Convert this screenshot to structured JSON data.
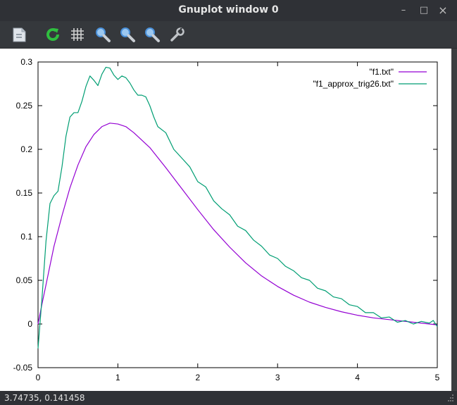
{
  "window": {
    "title": "Gnuplot window 0"
  },
  "controls": {
    "minimize": "–",
    "maximize": "□",
    "close": "×"
  },
  "toolbar": {
    "items": [
      {
        "name": "copy-to-clipboard-icon",
        "color": "#dfe4ea"
      },
      {
        "name": "replot-icon",
        "color": "#2fbf3f"
      },
      {
        "name": "grid-icon",
        "color": "#cfcfcf"
      },
      {
        "name": "zoom-previous-icon",
        "color": "#4a90d9"
      },
      {
        "name": "zoom-next-icon",
        "color": "#4a90d9"
      },
      {
        "name": "autoscale-icon",
        "color": "#4a90d9"
      },
      {
        "name": "settings-wrench-icon",
        "color": "#bfc3c7"
      }
    ]
  },
  "status": {
    "coords": "3.74735,  0.141458"
  },
  "chart_data": {
    "type": "line",
    "title": "",
    "xlabel": "",
    "ylabel": "",
    "xlim": [
      0,
      5
    ],
    "ylim": [
      -0.05,
      0.3
    ],
    "xticks": [
      0,
      1,
      2,
      3,
      4,
      5
    ],
    "xtick_labels": [
      "0",
      "1",
      "2",
      "3",
      "4",
      "5"
    ],
    "yticks": [
      -0.05,
      0,
      0.05,
      0.1,
      0.15,
      0.2,
      0.25,
      0.3
    ],
    "ytick_labels": [
      "-0.05",
      "0",
      "0.05",
      "0.1",
      "0.15",
      "0.2",
      "0.25",
      "0.3"
    ],
    "grid": false,
    "legend": "top-right",
    "series": [
      {
        "name": "\"f1.txt\"",
        "color": "#9400d3",
        "x": [
          0,
          0.05,
          0.1,
          0.2,
          0.3,
          0.4,
          0.5,
          0.6,
          0.7,
          0.8,
          0.9,
          1.0,
          1.1,
          1.2,
          1.4,
          1.6,
          1.8,
          2.0,
          2.2,
          2.4,
          2.6,
          2.8,
          3.0,
          3.2,
          3.4,
          3.6,
          3.8,
          4.0,
          4.2,
          4.4,
          4.6,
          4.8,
          5.0
        ],
        "y": [
          0,
          0.023,
          0.045,
          0.089,
          0.124,
          0.156,
          0.182,
          0.203,
          0.217,
          0.226,
          0.23,
          0.229,
          0.226,
          0.219,
          0.202,
          0.179,
          0.155,
          0.131,
          0.108,
          0.088,
          0.07,
          0.055,
          0.043,
          0.033,
          0.025,
          0.019,
          0.014,
          0.01,
          0.007,
          0.005,
          0.003,
          0.001,
          -0.001
        ]
      },
      {
        "name": "\"f1_approx_trig26.txt\"",
        "color": "#009e73",
        "x": [
          0,
          0.05,
          0.1,
          0.15,
          0.2,
          0.25,
          0.3,
          0.35,
          0.4,
          0.45,
          0.5,
          0.55,
          0.6,
          0.65,
          0.7,
          0.75,
          0.8,
          0.85,
          0.9,
          0.95,
          1.0,
          1.05,
          1.1,
          1.15,
          1.2,
          1.25,
          1.3,
          1.35,
          1.4,
          1.45,
          1.5,
          1.6,
          1.7,
          1.8,
          1.9,
          2.0,
          2.1,
          2.2,
          2.3,
          2.4,
          2.5,
          2.6,
          2.7,
          2.8,
          2.9,
          3.0,
          3.1,
          3.2,
          3.3,
          3.4,
          3.5,
          3.6,
          3.7,
          3.8,
          3.9,
          4.0,
          4.1,
          4.2,
          4.3,
          4.4,
          4.5,
          4.6,
          4.7,
          4.8,
          4.9,
          4.95,
          5.0
        ],
        "y": [
          -0.028,
          0.03,
          0.095,
          0.138,
          0.147,
          0.152,
          0.18,
          0.215,
          0.237,
          0.242,
          0.242,
          0.255,
          0.272,
          0.284,
          0.279,
          0.273,
          0.286,
          0.294,
          0.293,
          0.285,
          0.28,
          0.284,
          0.282,
          0.276,
          0.268,
          0.262,
          0.262,
          0.26,
          0.25,
          0.237,
          0.226,
          0.219,
          0.2,
          0.19,
          0.18,
          0.163,
          0.157,
          0.141,
          0.132,
          0.125,
          0.112,
          0.107,
          0.096,
          0.089,
          0.079,
          0.075,
          0.066,
          0.061,
          0.053,
          0.05,
          0.041,
          0.038,
          0.031,
          0.029,
          0.022,
          0.02,
          0.013,
          0.013,
          0.007,
          0.008,
          0.002,
          0.004,
          0.0,
          0.003,
          0.001,
          0.004,
          -0.003
        ]
      }
    ]
  }
}
